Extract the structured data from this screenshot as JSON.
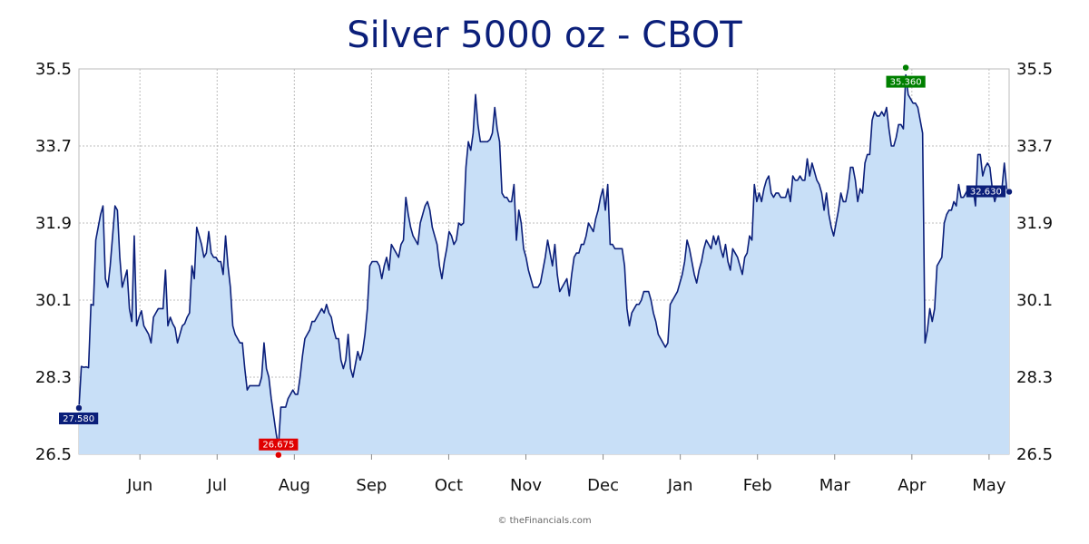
{
  "chart_data": {
    "type": "area",
    "title": "Silver 5000 oz - CBOT",
    "ylim": [
      26.5,
      35.5
    ],
    "yticks": [
      "35.5",
      "33.7",
      "31.9",
      "30.1",
      "28.3",
      "26.5"
    ],
    "month_labels": [
      "Jun",
      "Jul",
      "Aug",
      "Sep",
      "Oct",
      "Nov",
      "Dec",
      "Jan",
      "Feb",
      "Mar",
      "Apr",
      "May"
    ],
    "grid": true,
    "colors": {
      "line": "#0b1f7a",
      "fill": "#c8dff7",
      "start": "#0b1f7a",
      "low": "#e00000",
      "high": "#008000",
      "last": "#0b1f7a"
    },
    "markers": {
      "start": "27.580",
      "low": "26.675",
      "high": "35.360",
      "last": "32.630"
    },
    "series": [
      {
        "values": [
          27.58,
          28.55,
          28.53,
          28.54,
          28.52,
          30.0,
          29.98,
          31.5,
          31.8,
          32.1,
          32.3,
          30.6,
          30.4,
          30.9,
          31.6,
          32.3,
          32.2,
          31.1,
          30.4,
          30.6,
          30.8,
          29.9,
          29.6,
          31.6,
          29.5,
          29.7,
          29.85,
          29.5,
          29.4,
          29.3,
          29.1,
          29.7,
          29.8,
          29.9,
          29.9,
          29.9,
          30.8,
          29.5,
          29.7,
          29.55,
          29.45,
          29.1,
          29.3,
          29.5,
          29.55,
          29.7,
          29.8,
          30.9,
          30.6,
          31.8,
          31.6,
          31.4,
          31.1,
          31.2,
          31.7,
          31.2,
          31.1,
          31.1,
          31.0,
          31.0,
          30.7,
          31.6,
          30.9,
          30.4,
          29.5,
          29.3,
          29.2,
          29.1,
          29.1,
          28.5,
          28.0,
          28.1,
          28.1,
          28.1,
          28.1,
          28.1,
          28.3,
          29.1,
          28.5,
          28.3,
          27.8,
          27.4,
          27.0,
          26.675,
          27.6,
          27.6,
          27.6,
          27.8,
          27.9,
          28.0,
          27.9,
          27.9,
          28.3,
          28.8,
          29.2,
          29.3,
          29.4,
          29.6,
          29.6,
          29.7,
          29.8,
          29.9,
          29.8,
          30.0,
          29.8,
          29.7,
          29.4,
          29.2,
          29.2,
          28.7,
          28.5,
          28.7,
          29.3,
          28.5,
          28.3,
          28.6,
          28.9,
          28.7,
          28.9,
          29.3,
          29.9,
          30.9,
          31.0,
          31.0,
          31.0,
          30.9,
          30.6,
          30.9,
          31.1,
          30.8,
          31.4,
          31.3,
          31.2,
          31.1,
          31.4,
          31.5,
          32.5,
          32.1,
          31.8,
          31.6,
          31.5,
          31.4,
          31.9,
          32.1,
          32.3,
          32.4,
          32.2,
          31.8,
          31.6,
          31.4,
          30.9,
          30.6,
          31.0,
          31.3,
          31.7,
          31.6,
          31.4,
          31.5,
          31.9,
          31.85,
          31.9,
          33.2,
          33.8,
          33.6,
          34.0,
          34.9,
          34.2,
          33.8,
          33.8,
          33.8,
          33.8,
          33.85,
          34.0,
          34.6,
          34.1,
          33.8,
          32.6,
          32.5,
          32.5,
          32.4,
          32.4,
          32.8,
          31.5,
          32.2,
          31.9,
          31.3,
          31.1,
          30.8,
          30.6,
          30.4,
          30.4,
          30.4,
          30.5,
          30.8,
          31.1,
          31.5,
          31.2,
          30.9,
          31.4,
          30.7,
          30.3,
          30.4,
          30.5,
          30.6,
          30.2,
          30.7,
          31.1,
          31.2,
          31.2,
          31.4,
          31.4,
          31.6,
          31.9,
          31.8,
          31.7,
          32.0,
          32.2,
          32.5,
          32.7,
          32.2,
          32.8,
          31.4,
          31.4,
          31.3,
          31.3,
          31.3,
          31.3,
          30.9,
          29.9,
          29.5,
          29.8,
          29.9,
          30.0,
          30.0,
          30.1,
          30.3,
          30.3,
          30.3,
          30.1,
          29.8,
          29.6,
          29.3,
          29.2,
          29.1,
          29.0,
          29.1,
          30.0,
          30.1,
          30.2,
          30.3,
          30.5,
          30.7,
          31.0,
          31.5,
          31.3,
          31.0,
          30.7,
          30.5,
          30.8,
          31.0,
          31.3,
          31.5,
          31.4,
          31.3,
          31.6,
          31.4,
          31.6,
          31.3,
          31.1,
          31.4,
          31.0,
          30.8,
          31.3,
          31.2,
          31.1,
          30.9,
          30.7,
          31.1,
          31.2,
          31.6,
          31.5,
          32.8,
          32.4,
          32.6,
          32.4,
          32.7,
          32.9,
          33.0,
          32.6,
          32.5,
          32.6,
          32.6,
          32.5,
          32.5,
          32.5,
          32.7,
          32.4,
          33.0,
          32.9,
          32.9,
          33.0,
          32.9,
          32.9,
          33.4,
          33.0,
          33.3,
          33.1,
          32.9,
          32.8,
          32.6,
          32.2,
          32.6,
          32.1,
          31.8,
          31.6,
          31.9,
          32.2,
          32.6,
          32.4,
          32.4,
          32.7,
          33.2,
          33.2,
          32.9,
          32.4,
          32.7,
          32.6,
          33.3,
          33.5,
          33.5,
          34.3,
          34.5,
          34.4,
          34.4,
          34.5,
          34.4,
          34.6,
          34.1,
          33.7,
          33.7,
          33.9,
          34.2,
          34.2,
          34.1,
          35.36,
          34.9,
          34.8,
          34.7,
          34.7,
          34.6,
          34.3,
          34.0,
          29.1,
          29.4,
          29.9,
          29.6,
          29.9,
          30.9,
          31.0,
          31.1,
          31.9,
          32.1,
          32.2,
          32.2,
          32.4,
          32.3,
          32.8,
          32.5,
          32.5,
          32.6,
          32.7,
          32.7,
          32.7,
          32.3,
          33.5,
          33.5,
          33.0,
          33.2,
          33.3,
          33.2,
          32.7,
          32.4,
          32.6,
          32.6,
          32.7,
          33.3,
          32.7,
          32.63
        ]
      }
    ]
  },
  "footer": "© theFinancials.com"
}
